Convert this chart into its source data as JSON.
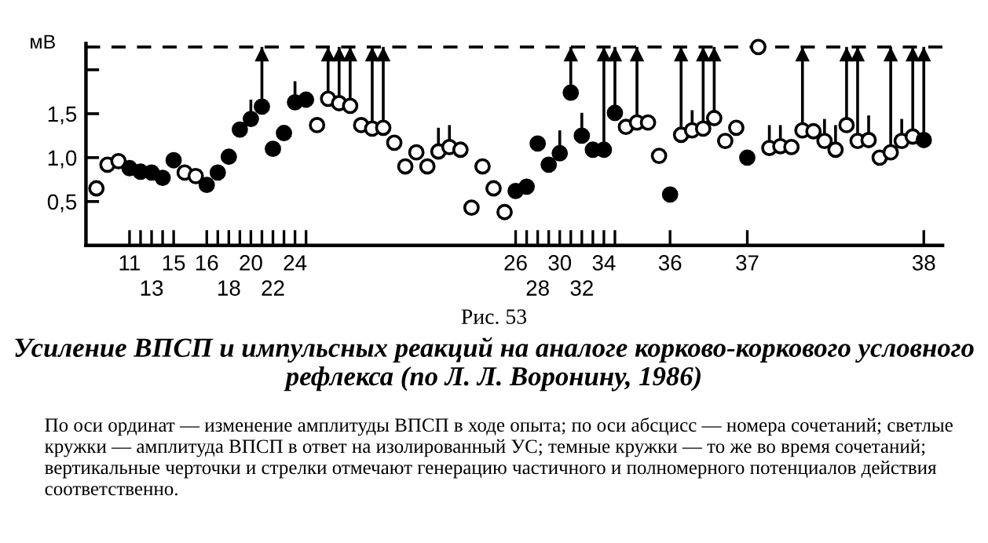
{
  "chart_data": {
    "type": "scatter",
    "title": "Усиление ВПСП и импульсных реакций на аналоге корково-коркового условного рефлекса (по Л. Л. Воронину, 1986)",
    "ylabel": "мВ",
    "annotations": [
      "Рис. 53",
      "По оси ординат — изменение амплитуды ВПСП в ходе опыта; по оси абсцисс — номера сочетаний; светлые кружки — амплитуда ВПСП в ответ на изолированный УС; темные кружки — то же во время сочетаний; вертикальные черточки и стрелки отмечают генерацию частичного и полномерного потенциалов действия соответственно."
    ],
    "categories": [
      null,
      null,
      null,
      "11",
      null,
      "13",
      null,
      "15",
      null,
      null,
      "16",
      null,
      "18",
      null,
      "20",
      null,
      "22",
      null,
      "24",
      null,
      null,
      null,
      null,
      null,
      null,
      null,
      null,
      null,
      null,
      null,
      null,
      null,
      null,
      null,
      null,
      null,
      null,
      null,
      "26",
      null,
      "28",
      null,
      "30",
      null,
      "32",
      null,
      "34",
      null,
      null,
      null,
      null,
      null,
      "36",
      null,
      null,
      null,
      null,
      null,
      null,
      "37",
      null,
      null,
      null,
      null,
      null,
      null,
      null,
      null,
      null,
      null,
      null,
      null,
      null,
      null,
      null,
      "38"
    ],
    "ylim": [
      0,
      2.3
    ],
    "yticks": [
      {
        "value": 0.5,
        "label": "0,5"
      },
      {
        "value": 1.0,
        "label": "1,0"
      },
      {
        "value": 1.5,
        "label": "1,5"
      },
      {
        "value": 2.0,
        "label": null
      }
    ],
    "ref_lines": [
      {
        "axis": "y",
        "value": 2.26,
        "line_style": "dashed",
        "color": "#000000"
      }
    ],
    "marker": "circle",
    "grid": false,
    "legend": false,
    "series": [
      {
        "color": "#ffffff",
        "values": [
          0.65,
          0.92,
          0.96,
          null,
          null,
          null,
          null,
          null,
          0.83,
          0.79,
          null,
          null,
          null,
          null,
          null,
          null,
          null,
          null,
          null,
          null,
          1.37,
          1.67,
          1.62,
          1.59,
          1.37,
          1.33,
          1.34,
          1.17,
          0.9,
          1.06,
          0.9,
          1.07,
          1.12,
          1.09,
          0.43,
          0.9,
          0.65,
          0.38,
          null,
          null,
          null,
          null,
          null,
          null,
          null,
          null,
          null,
          null,
          1.35,
          1.4,
          1.4,
          1.02,
          null,
          1.26,
          1.31,
          1.33,
          1.45,
          1.19,
          1.34,
          null,
          2.26,
          1.11,
          1.13,
          1.12,
          1.31,
          1.3,
          1.19,
          1.09,
          1.37,
          1.19,
          1.2,
          1.0,
          1.06,
          1.19,
          1.24,
          null
        ],
        "errors": [
          null,
          null,
          null,
          null,
          null,
          null,
          null,
          null,
          null,
          null,
          null,
          null,
          null,
          null,
          null,
          null,
          null,
          null,
          null,
          null,
          null,
          [
            1.67,
            2.26
          ],
          [
            1.62,
            2.26
          ],
          [
            1.59,
            2.26
          ],
          null,
          [
            1.33,
            2.26
          ],
          [
            1.34,
            2.26
          ],
          null,
          null,
          null,
          null,
          [
            1.07,
            1.34
          ],
          [
            1.12,
            1.37
          ],
          null,
          null,
          null,
          null,
          null,
          null,
          null,
          null,
          null,
          null,
          null,
          null,
          null,
          null,
          null,
          null,
          [
            1.4,
            2.26
          ],
          null,
          null,
          null,
          [
            1.26,
            2.26
          ],
          [
            1.31,
            1.54
          ],
          [
            1.33,
            2.26
          ],
          [
            1.45,
            2.26
          ],
          null,
          null,
          null,
          null,
          [
            1.11,
            1.37
          ],
          [
            1.13,
            1.37
          ],
          null,
          [
            1.31,
            2.26
          ],
          null,
          [
            1.19,
            1.44
          ],
          [
            1.09,
            1.37
          ],
          [
            1.37,
            2.26
          ],
          [
            1.19,
            2.26
          ],
          [
            1.2,
            1.48
          ],
          null,
          [
            1.06,
            2.26
          ],
          [
            1.19,
            1.44
          ],
          [
            1.24,
            2.26
          ],
          null
        ]
      },
      {
        "color": "#000000",
        "values": [
          null,
          null,
          null,
          0.88,
          0.84,
          0.83,
          0.77,
          0.97,
          null,
          null,
          0.69,
          0.83,
          1.01,
          1.32,
          1.44,
          1.58,
          1.1,
          1.28,
          1.63,
          1.66,
          null,
          null,
          null,
          null,
          null,
          null,
          null,
          null,
          null,
          null,
          null,
          null,
          null,
          null,
          null,
          null,
          null,
          null,
          0.62,
          0.67,
          1.16,
          0.92,
          1.05,
          1.74,
          1.25,
          1.09,
          1.09,
          1.51,
          null,
          null,
          null,
          null,
          0.58,
          null,
          null,
          null,
          null,
          null,
          null,
          1.0,
          null,
          null,
          null,
          null,
          null,
          null,
          null,
          null,
          null,
          null,
          null,
          null,
          null,
          null,
          null,
          1.2
        ],
        "errors": [
          null,
          null,
          null,
          null,
          null,
          null,
          null,
          null,
          null,
          null,
          null,
          null,
          null,
          null,
          [
            1.44,
            1.66
          ],
          [
            1.58,
            2.26
          ],
          null,
          null,
          [
            1.63,
            1.87
          ],
          null,
          null,
          null,
          null,
          null,
          null,
          null,
          null,
          null,
          null,
          null,
          null,
          null,
          null,
          null,
          null,
          null,
          null,
          null,
          null,
          null,
          null,
          null,
          [
            1.05,
            1.31
          ],
          [
            1.74,
            2.26
          ],
          [
            1.25,
            1.51
          ],
          null,
          [
            1.09,
            2.26
          ],
          [
            1.51,
            2.26
          ],
          null,
          null,
          null,
          null,
          null,
          null,
          null,
          null,
          null,
          null,
          null,
          null,
          null,
          null,
          null,
          null,
          null,
          null,
          null,
          null,
          null,
          null,
          null,
          null,
          null,
          null,
          null,
          [
            1.2,
            2.26
          ]
        ]
      }
    ]
  }
}
